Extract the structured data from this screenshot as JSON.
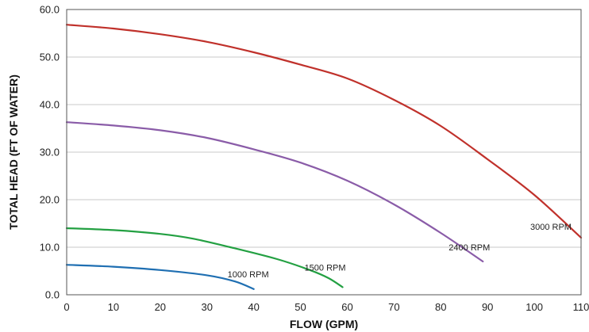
{
  "chart_data": {
    "type": "line",
    "xlabel": "FLOW (GPM)",
    "ylabel": "TOTAL HEAD (FT OF WATER)",
    "xlim": [
      0,
      110
    ],
    "ylim": [
      0,
      60
    ],
    "x_ticks": [
      "0",
      "10",
      "20",
      "30",
      "40",
      "50",
      "60",
      "70",
      "80",
      "90",
      "100",
      "110"
    ],
    "y_ticks": [
      "0.0",
      "10.0",
      "20.0",
      "30.0",
      "40.0",
      "50.0",
      "60.0"
    ],
    "grid": "horizontal",
    "series": [
      {
        "name": "3000 RPM",
        "color": "#c0312b",
        "points": [
          [
            0,
            56.8
          ],
          [
            10,
            56.0
          ],
          [
            20,
            54.8
          ],
          [
            30,
            53.2
          ],
          [
            40,
            51.0
          ],
          [
            50,
            48.4
          ],
          [
            60,
            45.5
          ],
          [
            70,
            41.0
          ],
          [
            80,
            35.5
          ],
          [
            90,
            28.5
          ],
          [
            100,
            21.0
          ],
          [
            110,
            12.0
          ]
        ]
      },
      {
        "name": "2400 RPM",
        "color": "#8a5ca8",
        "points": [
          [
            0,
            36.3
          ],
          [
            10,
            35.6
          ],
          [
            20,
            34.6
          ],
          [
            30,
            33.0
          ],
          [
            40,
            30.6
          ],
          [
            50,
            27.8
          ],
          [
            60,
            24.0
          ],
          [
            70,
            19.0
          ],
          [
            80,
            13.0
          ],
          [
            89,
            7.0
          ]
        ]
      },
      {
        "name": "1500 RPM",
        "color": "#23a042",
        "points": [
          [
            0,
            14.0
          ],
          [
            10,
            13.6
          ],
          [
            20,
            12.8
          ],
          [
            27,
            11.8
          ],
          [
            35,
            10.0
          ],
          [
            45,
            7.5
          ],
          [
            52,
            5.2
          ],
          [
            56,
            3.5
          ],
          [
            59,
            1.6
          ]
        ]
      },
      {
        "name": "1000 RPM",
        "color": "#1f6fb2",
        "points": [
          [
            0,
            6.3
          ],
          [
            10,
            5.9
          ],
          [
            20,
            5.2
          ],
          [
            30,
            4.1
          ],
          [
            36,
            2.8
          ],
          [
            40,
            1.2
          ]
        ]
      }
    ]
  }
}
